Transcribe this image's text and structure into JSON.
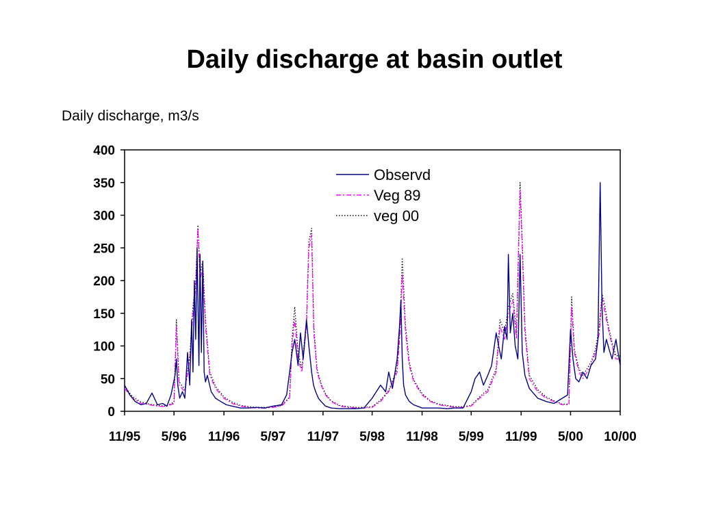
{
  "slide": {
    "title": "Daily discharge at basin outlet"
  },
  "chart_data": {
    "type": "line",
    "title": "Daily discharge at basin outlet",
    "ylabel": "Daily discharge, m3/s",
    "xlabel": "",
    "ylim": [
      0,
      400
    ],
    "yticks": [
      0,
      50,
      100,
      150,
      200,
      250,
      300,
      350,
      400
    ],
    "xlim": [
      "1995-11-01",
      "2000-10-31"
    ],
    "xtick_labels": [
      "11/95",
      "5/96",
      "11/96",
      "5/97",
      "11/97",
      "5/98",
      "11/98",
      "5/99",
      "11/99",
      "5/00",
      "10/00"
    ],
    "xtick_dates": [
      "1995-11-01",
      "1996-05-01",
      "1996-11-01",
      "1997-05-01",
      "1997-11-01",
      "1998-05-01",
      "1998-11-01",
      "1999-05-01",
      "1999-11-01",
      "2000-05-01",
      "2000-10-31"
    ],
    "grid": false,
    "legend_position": "top-center",
    "series": [
      {
        "name": "Observd",
        "color": "#000080",
        "style": "solid",
        "x": [
          "1995-11-01",
          "1995-11-20",
          "1995-12-10",
          "1996-01-01",
          "1996-01-20",
          "1996-02-10",
          "1996-03-01",
          "1996-03-20",
          "1996-04-05",
          "1996-04-20",
          "1996-05-05",
          "1996-05-10",
          "1996-05-15",
          "1996-05-22",
          "1996-06-01",
          "1996-06-10",
          "1996-06-20",
          "1996-06-28",
          "1996-07-05",
          "1996-07-10",
          "1996-07-15",
          "1996-07-20",
          "1996-07-25",
          "1996-08-01",
          "1996-08-05",
          "1996-08-10",
          "1996-08-15",
          "1996-08-20",
          "1996-08-25",
          "1996-09-01",
          "1996-09-15",
          "1996-10-01",
          "1996-10-20",
          "1996-11-10",
          "1996-12-01",
          "1997-01-01",
          "1997-02-01",
          "1997-03-01",
          "1997-04-01",
          "1997-05-01",
          "1997-06-01",
          "1997-06-20",
          "1997-07-01",
          "1997-07-10",
          "1997-07-20",
          "1997-08-01",
          "1997-08-10",
          "1997-08-20",
          "1997-09-01",
          "1997-09-10",
          "1997-09-20",
          "1997-09-27",
          "1997-10-05",
          "1997-10-15",
          "1997-10-25",
          "1997-11-10",
          "1997-12-01",
          "1998-01-01",
          "1998-02-01",
          "1998-03-01",
          "1998-04-01",
          "1998-05-01",
          "1998-06-01",
          "1998-06-20",
          "1998-07-01",
          "1998-07-15",
          "1998-08-01",
          "1998-08-10",
          "1998-08-15",
          "1998-08-20",
          "1998-08-25",
          "1998-09-01",
          "1998-09-15",
          "1998-10-01",
          "1998-11-01",
          "1998-12-01",
          "1999-01-01",
          "1999-02-01",
          "1999-03-01",
          "1999-04-01",
          "1999-05-01",
          "1999-05-15",
          "1999-06-01",
          "1999-06-15",
          "1999-07-01",
          "1999-07-15",
          "1999-08-01",
          "1999-08-10",
          "1999-08-20",
          "1999-09-01",
          "1999-09-10",
          "1999-09-15",
          "1999-09-22",
          "1999-10-01",
          "1999-10-10",
          "1999-10-20",
          "1999-10-28",
          "1999-11-05",
          "1999-11-15",
          "1999-12-01",
          "2000-01-01",
          "2000-02-01",
          "2000-03-01",
          "2000-04-01",
          "2000-04-20",
          "2000-05-01",
          "2000-05-10",
          "2000-05-20",
          "2000-06-01",
          "2000-06-15",
          "2000-07-01",
          "2000-07-15",
          "2000-08-01",
          "2000-08-10",
          "2000-08-18",
          "2000-08-25",
          "2000-09-01",
          "2000-09-10",
          "2000-09-20",
          "2000-10-01",
          "2000-10-15",
          "2000-10-31"
        ],
        "y": [
          40,
          25,
          15,
          10,
          12,
          28,
          10,
          12,
          8,
          25,
          55,
          80,
          40,
          20,
          30,
          20,
          90,
          40,
          140,
          60,
          200,
          110,
          250,
          70,
          240,
          90,
          230,
          60,
          45,
          55,
          30,
          20,
          15,
          10,
          8,
          5,
          5,
          6,
          5,
          8,
          10,
          25,
          60,
          90,
          110,
          70,
          120,
          80,
          140,
          100,
          60,
          40,
          30,
          20,
          15,
          8,
          5,
          4,
          4,
          4,
          5,
          20,
          40,
          30,
          60,
          35,
          80,
          130,
          170,
          80,
          40,
          25,
          15,
          10,
          5,
          5,
          5,
          4,
          5,
          5,
          30,
          50,
          60,
          40,
          55,
          70,
          120,
          100,
          80,
          130,
          110,
          240,
          120,
          150,
          100,
          80,
          240,
          90,
          55,
          35,
          20,
          15,
          12,
          20,
          25,
          125,
          80,
          50,
          45,
          60,
          50,
          70,
          80,
          110,
          350,
          160,
          90,
          110,
          95,
          80,
          110,
          70
        ]
      },
      {
        "name": "Veg 89",
        "color": "#ff00ff",
        "style": "dashdot",
        "x": [
          "1995-11-01",
          "1995-12-01",
          "1996-01-01",
          "1996-02-01",
          "1996-03-01",
          "1996-04-01",
          "1996-05-01",
          "1996-05-10",
          "1996-05-20",
          "1996-06-10",
          "1996-06-28",
          "1996-07-10",
          "1996-07-20",
          "1996-07-28",
          "1996-08-05",
          "1996-08-15",
          "1996-08-25",
          "1996-09-10",
          "1996-10-01",
          "1996-11-01",
          "1996-12-01",
          "1997-01-01",
          "1997-02-01",
          "1997-03-01",
          "1997-04-01",
          "1997-05-01",
          "1997-06-01",
          "1997-07-01",
          "1997-07-10",
          "1997-07-20",
          "1997-08-01",
          "1997-08-15",
          "1997-09-01",
          "1997-09-10",
          "1997-09-20",
          "1997-09-28",
          "1997-10-10",
          "1997-10-25",
          "1997-11-10",
          "1997-12-01",
          "1998-01-01",
          "1998-02-01",
          "1998-03-01",
          "1998-04-01",
          "1998-05-01",
          "1998-06-01",
          "1998-07-01",
          "1998-08-01",
          "1998-08-12",
          "1998-08-20",
          "1998-09-01",
          "1998-09-15",
          "1998-10-01",
          "1998-11-01",
          "1998-12-01",
          "1999-01-01",
          "1999-02-01",
          "1999-03-01",
          "1999-04-01",
          "1999-05-01",
          "1999-06-01",
          "1999-07-01",
          "1999-08-01",
          "1999-08-15",
          "1999-09-01",
          "1999-09-15",
          "1999-10-01",
          "1999-10-15",
          "1999-10-28",
          "1999-11-05",
          "1999-11-15",
          "1999-12-01",
          "2000-01-01",
          "2000-02-01",
          "2000-03-01",
          "2000-04-01",
          "2000-04-25",
          "2000-05-05",
          "2000-05-15",
          "2000-06-01",
          "2000-06-15",
          "2000-07-01",
          "2000-07-15",
          "2000-08-01",
          "2000-08-15",
          "2000-08-25",
          "2000-09-05",
          "2000-09-15",
          "2000-10-01",
          "2000-10-15",
          "2000-10-31"
        ],
        "y": [
          35,
          20,
          12,
          10,
          8,
          7,
          12,
          130,
          40,
          30,
          80,
          150,
          190,
          280,
          200,
          220,
          130,
          55,
          35,
          20,
          12,
          8,
          6,
          5,
          5,
          6,
          8,
          20,
          100,
          140,
          80,
          60,
          130,
          250,
          270,
          120,
          60,
          40,
          25,
          15,
          8,
          6,
          5,
          5,
          6,
          15,
          30,
          60,
          120,
          210,
          120,
          70,
          45,
          25,
          15,
          10,
          8,
          6,
          6,
          8,
          20,
          30,
          60,
          130,
          110,
          150,
          170,
          110,
          340,
          250,
          120,
          50,
          30,
          20,
          15,
          10,
          10,
          160,
          90,
          60,
          50,
          60,
          70,
          90,
          120,
          175,
          150,
          130,
          100,
          80,
          80
        ]
      },
      {
        "name": "veg 00",
        "color": "#000000",
        "style": "dotted",
        "x": [
          "1995-11-01",
          "1995-12-01",
          "1996-01-01",
          "1996-02-01",
          "1996-03-01",
          "1996-04-01",
          "1996-05-01",
          "1996-05-10",
          "1996-05-20",
          "1996-06-10",
          "1996-06-28",
          "1996-07-10",
          "1996-07-20",
          "1996-07-28",
          "1996-08-05",
          "1996-08-15",
          "1996-08-25",
          "1996-09-10",
          "1996-10-01",
          "1996-11-01",
          "1996-12-01",
          "1997-01-01",
          "1997-02-01",
          "1997-03-01",
          "1997-04-01",
          "1997-05-01",
          "1997-06-01",
          "1997-07-01",
          "1997-07-10",
          "1997-07-20",
          "1997-08-01",
          "1997-08-15",
          "1997-09-01",
          "1997-09-10",
          "1997-09-20",
          "1997-09-28",
          "1997-10-10",
          "1997-10-25",
          "1997-11-10",
          "1997-12-01",
          "1998-01-01",
          "1998-02-01",
          "1998-03-01",
          "1998-04-01",
          "1998-05-01",
          "1998-06-01",
          "1998-07-01",
          "1998-08-01",
          "1998-08-12",
          "1998-08-20",
          "1998-09-01",
          "1998-09-15",
          "1998-10-01",
          "1998-11-01",
          "1998-12-01",
          "1999-01-01",
          "1999-02-01",
          "1999-03-01",
          "1999-04-01",
          "1999-05-01",
          "1999-06-01",
          "1999-07-01",
          "1999-08-01",
          "1999-08-15",
          "1999-09-01",
          "1999-09-15",
          "1999-10-01",
          "1999-10-15",
          "1999-10-28",
          "1999-11-05",
          "1999-11-15",
          "1999-12-01",
          "2000-01-01",
          "2000-02-01",
          "2000-03-01",
          "2000-04-01",
          "2000-04-25",
          "2000-05-05",
          "2000-05-15",
          "2000-06-01",
          "2000-06-15",
          "2000-07-01",
          "2000-07-15",
          "2000-08-01",
          "2000-08-15",
          "2000-08-25",
          "2000-09-05",
          "2000-09-15",
          "2000-10-01",
          "2000-10-15",
          "2000-10-31"
        ],
        "y": [
          38,
          22,
          14,
          11,
          9,
          8,
          14,
          140,
          45,
          33,
          85,
          160,
          200,
          285,
          210,
          230,
          140,
          60,
          38,
          22,
          14,
          9,
          7,
          6,
          6,
          7,
          9,
          22,
          110,
          160,
          90,
          65,
          140,
          260,
          280,
          130,
          65,
          42,
          27,
          16,
          9,
          7,
          6,
          6,
          7,
          17,
          32,
          65,
          130,
          235,
          130,
          75,
          48,
          27,
          16,
          11,
          9,
          7,
          7,
          9,
          22,
          33,
          65,
          140,
          120,
          160,
          180,
          120,
          350,
          260,
          130,
          55,
          33,
          22,
          16,
          11,
          11,
          175,
          95,
          65,
          55,
          65,
          75,
          95,
          130,
          180,
          160,
          135,
          105,
          85,
          85
        ]
      }
    ]
  }
}
